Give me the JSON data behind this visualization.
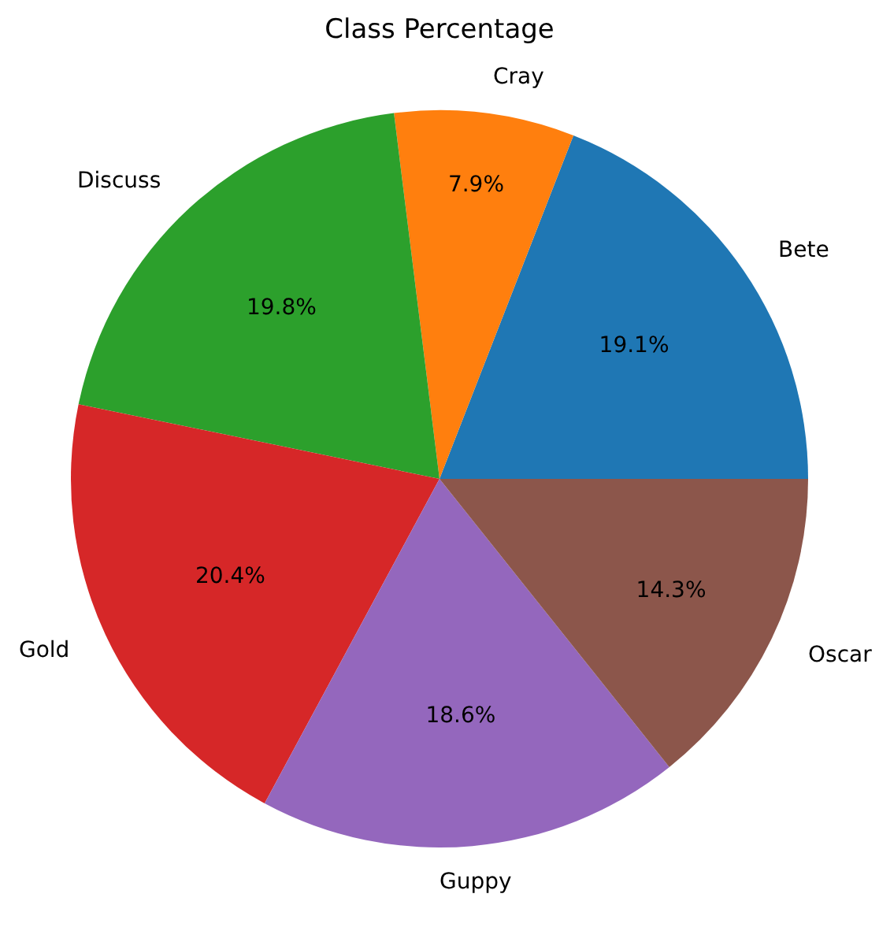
{
  "chart_data": {
    "type": "pie",
    "title": "Class Percentage",
    "categories": [
      "Bete",
      "Cray",
      "Discuss",
      "Gold",
      "Guppy",
      "Oscar"
    ],
    "values": [
      19.1,
      7.9,
      19.8,
      20.4,
      18.6,
      14.3
    ],
    "value_labels": [
      "19.1%",
      "7.9%",
      "19.8%",
      "20.4%",
      "18.6%",
      "14.3%"
    ],
    "colors": [
      "#1f77b4",
      "#ff7f0e",
      "#2ca02c",
      "#d62728",
      "#9467bd",
      "#8c564b"
    ],
    "legend": false
  }
}
